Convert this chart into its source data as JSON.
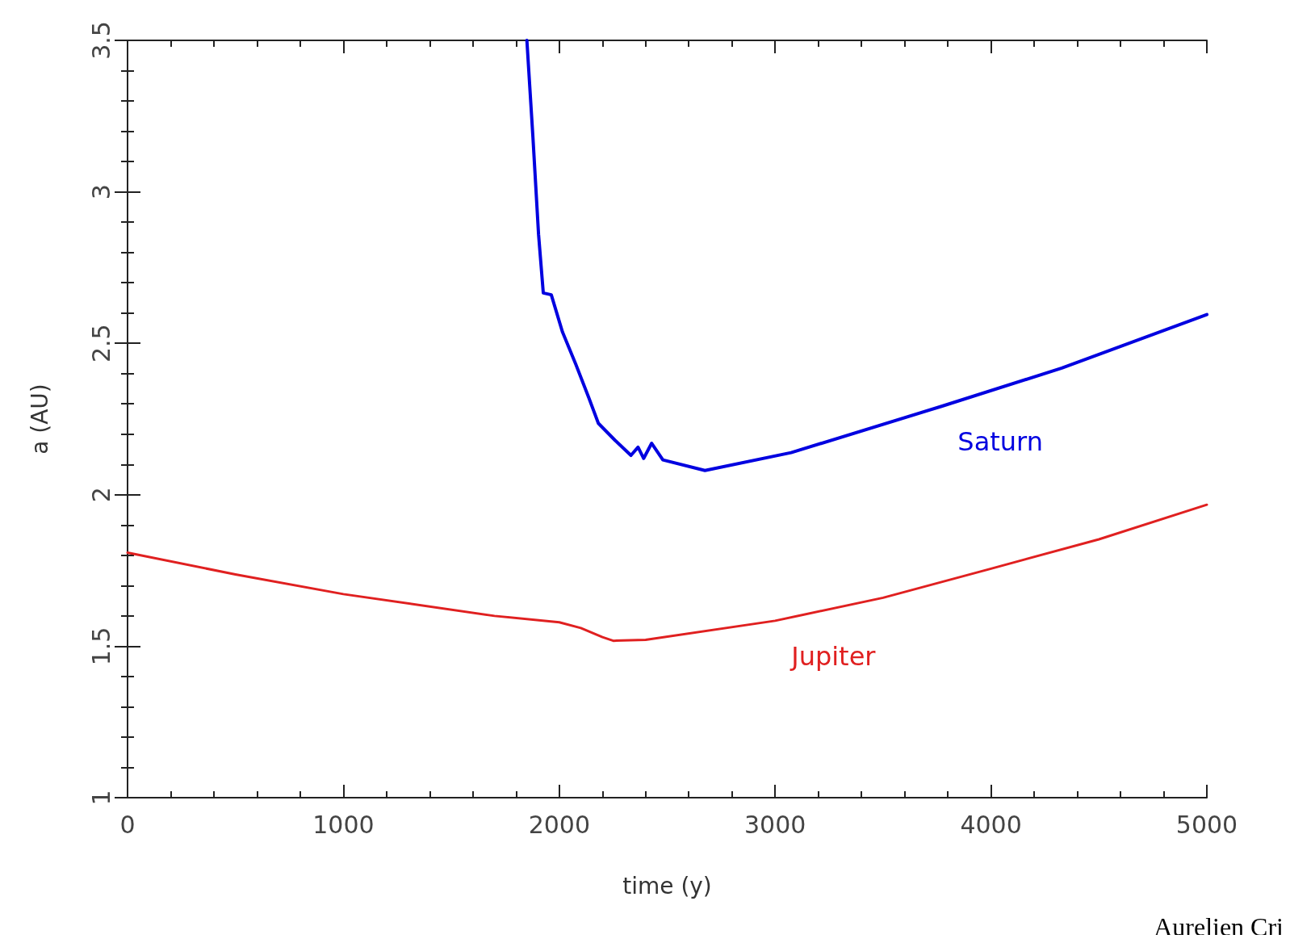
{
  "chart_data": {
    "type": "line",
    "xlabel": "time (y)",
    "ylabel": "a (AU)",
    "xlim": [
      0,
      5000
    ],
    "xticks": [
      0,
      1000,
      2000,
      3000,
      4000,
      5000
    ],
    "ylim": [
      1,
      3.5
    ],
    "yticks": [
      1,
      1.5,
      2,
      2.5,
      3,
      3.5
    ],
    "grid": false,
    "legend": false,
    "marker": "none",
    "line_style": "solid",
    "series": [
      {
        "name": "Saturn",
        "color": "#0000e0",
        "x": [
          1850,
          1878,
          1904,
          1926,
          1963,
          2015,
          2077,
          2137,
          2181,
          2258,
          2332,
          2365,
          2391,
          2428,
          2480,
          2675,
          3074,
          3771,
          4328,
          5000
        ],
        "values": [
          3.5,
          3.18,
          2.86,
          2.666,
          2.66,
          2.537,
          2.43,
          2.32,
          2.236,
          2.18,
          2.13,
          2.157,
          2.12,
          2.17,
          2.115,
          2.08,
          2.139,
          2.292,
          2.418,
          2.595
        ]
      },
      {
        "name": "Jupiter",
        "color": "#e02020",
        "x": [
          0,
          500,
          1000,
          1700,
          2000,
          2100,
          2200,
          2250,
          2400,
          3000,
          3500,
          4000,
          4500,
          5000
        ],
        "values": [
          1.809,
          1.737,
          1.672,
          1.6,
          1.579,
          1.56,
          1.53,
          1.518,
          1.521,
          1.584,
          1.66,
          1.756,
          1.853,
          1.967
        ]
      }
    ],
    "annotations": [
      "Aurelien Cri"
    ]
  }
}
